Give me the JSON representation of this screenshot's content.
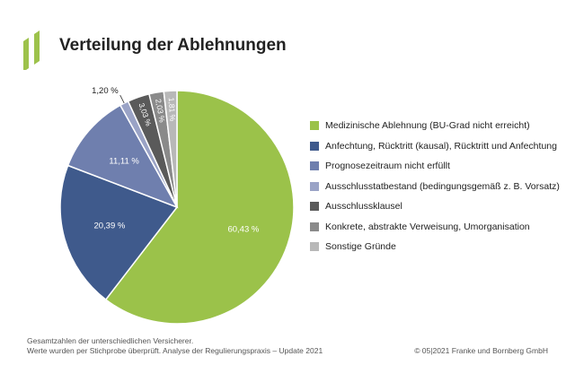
{
  "header": {
    "title": "Verteilung der Ablehnungen"
  },
  "colors": {
    "logo": "#9dc24b"
  },
  "chart_data": {
    "type": "pie",
    "title": "Verteilung der Ablehnungen",
    "legend_position": "right",
    "slices": [
      {
        "label": "Medizinische Ablehnung (BU-Grad nicht erreicht)",
        "value": 60.43,
        "display": "60,43 %",
        "color": "#9bc24a"
      },
      {
        "label": "Anfechtung, Rücktritt (kausal), Rücktritt und Anfechtung",
        "value": 20.39,
        "display": "20,39 %",
        "color": "#3f5a8c"
      },
      {
        "label": "Prognosezeitraum nicht erfüllt",
        "value": 11.11,
        "display": "11,11 %",
        "color": "#6f7fae"
      },
      {
        "label": "Ausschlusstatbestand (bedingungsgemäß z. B. Vorsatz)",
        "value": 1.2,
        "display": "1,20 %",
        "color": "#9aa3c6"
      },
      {
        "label": "Ausschlussklausel",
        "value": 3.03,
        "display": "3,03 %",
        "color": "#5a5a5a"
      },
      {
        "label": "Konkrete, abstrakte Verweisung, Umorganisation",
        "value": 2.03,
        "display": "2,03 %",
        "color": "#8a8a8a"
      },
      {
        "label": "Sonstige Gründe",
        "value": 1.81,
        "display": "1,81 %",
        "color": "#b8b8b8"
      }
    ]
  },
  "footer": {
    "note_line1": "Gesamtzahlen der unterschiedlichen Versicherer.",
    "note_line2": "Werte wurden per Stichprobe überprüft. Analyse der Regulierungspraxis – Update 2021",
    "copyright": "© 05|2021 Franke und Bornberg GmbH"
  }
}
